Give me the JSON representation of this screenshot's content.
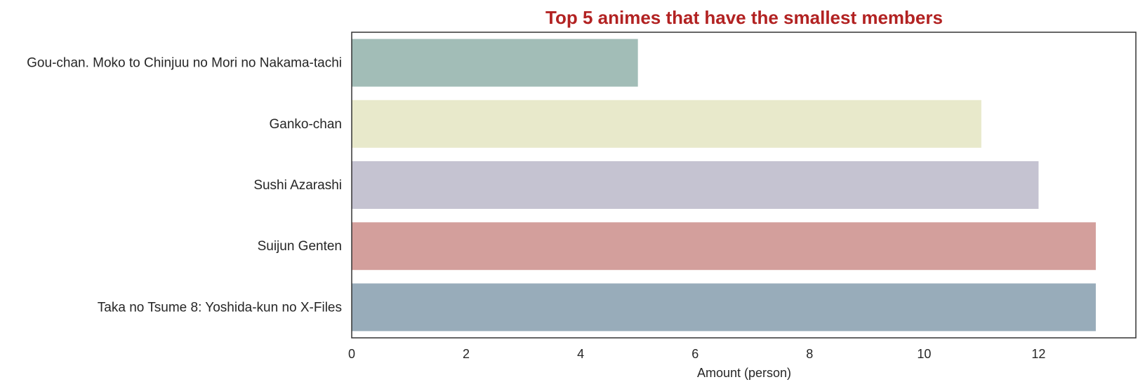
{
  "chart_data": {
    "type": "bar",
    "orientation": "horizontal",
    "title": "Top 5 animes that have the smallest members",
    "title_color": "#b22222",
    "xlabel": "Amount (person)",
    "ylabel": "",
    "xlim": [
      0,
      13.7
    ],
    "xticks": [
      "0",
      "2",
      "4",
      "6",
      "8",
      "10",
      "12"
    ],
    "grid": false,
    "categories": [
      "Gou-chan. Moko to Chinjuu no Mori no Nakama-tachi",
      "Ganko-chan",
      "Sushi Azarashi",
      "Suijun Genten",
      "Taka no Tsume 8: Yoshida-kun no X-Files"
    ],
    "values": [
      5,
      11,
      12,
      13,
      13
    ],
    "colors": [
      "#a2bdb7",
      "#e8e9cb",
      "#c5c3d1",
      "#d39f9c",
      "#98acba"
    ]
  }
}
